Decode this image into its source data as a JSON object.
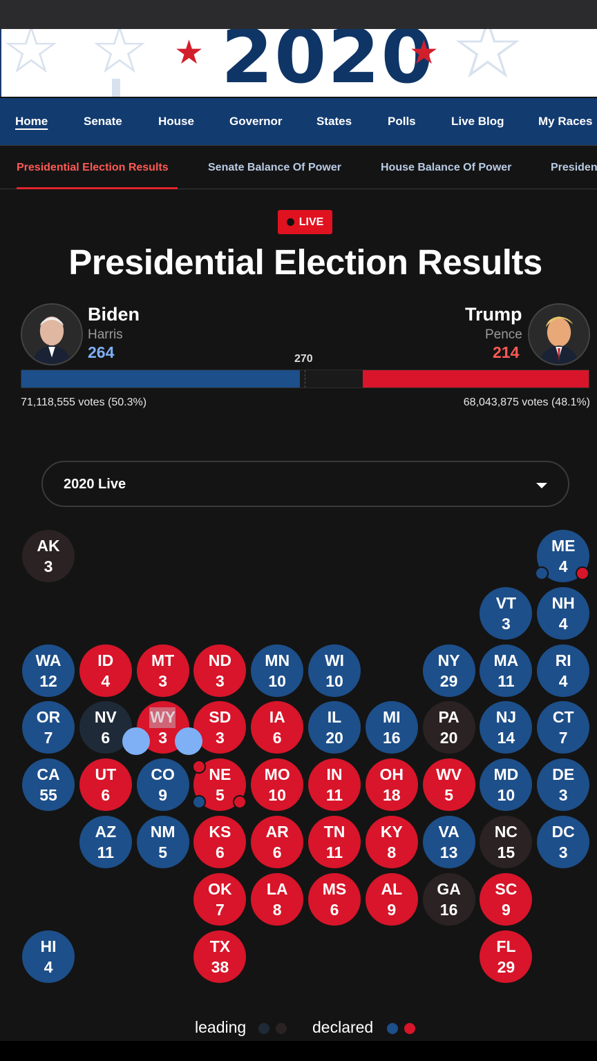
{
  "banner": {
    "year": "2020"
  },
  "nav": {
    "items": [
      "Home",
      "Senate",
      "House",
      "Governor",
      "States",
      "Polls",
      "Live Blog",
      "My Races"
    ]
  },
  "subnav": {
    "items": [
      "Presidential Election Results",
      "Senate Balance Of Power",
      "House Balance Of Power",
      "Presiden"
    ]
  },
  "live_label": "LIVE",
  "page_title": "Presidential Election Results",
  "candidates": {
    "dem": {
      "name": "Biden",
      "vp": "Harris",
      "electoral": "264",
      "votes": "71,118,555 votes (50.3%)"
    },
    "rep": {
      "name": "Trump",
      "vp": "Pence",
      "electoral": "214",
      "votes": "68,043,875 votes (48.1%)"
    }
  },
  "threshold": "270",
  "electoral_bar": {
    "total": 538,
    "dem": 264,
    "rep": 214,
    "dem_color": "#1d4f8a",
    "rep_color": "#d8152a"
  },
  "selector": {
    "value": "2020 Live"
  },
  "states": [
    {
      "abbr": "AK",
      "ev": "3",
      "status": "tbd"
    },
    {
      "abbr": "ME",
      "ev": "4",
      "status": "blue"
    },
    {
      "abbr": "VT",
      "ev": "3",
      "status": "blue"
    },
    {
      "abbr": "NH",
      "ev": "4",
      "status": "blue"
    },
    {
      "abbr": "WA",
      "ev": "12",
      "status": "blue"
    },
    {
      "abbr": "ID",
      "ev": "4",
      "status": "red"
    },
    {
      "abbr": "MT",
      "ev": "3",
      "status": "red"
    },
    {
      "abbr": "ND",
      "ev": "3",
      "status": "red"
    },
    {
      "abbr": "MN",
      "ev": "10",
      "status": "blue"
    },
    {
      "abbr": "WI",
      "ev": "10",
      "status": "blue"
    },
    {
      "abbr": "NY",
      "ev": "29",
      "status": "blue"
    },
    {
      "abbr": "MA",
      "ev": "11",
      "status": "blue"
    },
    {
      "abbr": "RI",
      "ev": "4",
      "status": "blue"
    },
    {
      "abbr": "OR",
      "ev": "7",
      "status": "blue"
    },
    {
      "abbr": "NV",
      "ev": "6",
      "status": "dark"
    },
    {
      "abbr": "WY",
      "ev": "3",
      "status": "red"
    },
    {
      "abbr": "SD",
      "ev": "3",
      "status": "red"
    },
    {
      "abbr": "IA",
      "ev": "6",
      "status": "red"
    },
    {
      "abbr": "IL",
      "ev": "20",
      "status": "blue"
    },
    {
      "abbr": "MI",
      "ev": "16",
      "status": "blue"
    },
    {
      "abbr": "PA",
      "ev": "20",
      "status": "tbd"
    },
    {
      "abbr": "NJ",
      "ev": "14",
      "status": "blue"
    },
    {
      "abbr": "CT",
      "ev": "7",
      "status": "blue"
    },
    {
      "abbr": "CA",
      "ev": "55",
      "status": "blue"
    },
    {
      "abbr": "UT",
      "ev": "6",
      "status": "red"
    },
    {
      "abbr": "CO",
      "ev": "9",
      "status": "blue"
    },
    {
      "abbr": "NE",
      "ev": "5",
      "status": "red"
    },
    {
      "abbr": "MO",
      "ev": "10",
      "status": "red"
    },
    {
      "abbr": "IN",
      "ev": "11",
      "status": "red"
    },
    {
      "abbr": "OH",
      "ev": "18",
      "status": "red"
    },
    {
      "abbr": "WV",
      "ev": "5",
      "status": "red"
    },
    {
      "abbr": "MD",
      "ev": "10",
      "status": "blue"
    },
    {
      "abbr": "DE",
      "ev": "3",
      "status": "blue"
    },
    {
      "abbr": "AZ",
      "ev": "11",
      "status": "blue"
    },
    {
      "abbr": "NM",
      "ev": "5",
      "status": "blue"
    },
    {
      "abbr": "KS",
      "ev": "6",
      "status": "red"
    },
    {
      "abbr": "AR",
      "ev": "6",
      "status": "red"
    },
    {
      "abbr": "TN",
      "ev": "11",
      "status": "red"
    },
    {
      "abbr": "KY",
      "ev": "8",
      "status": "red"
    },
    {
      "abbr": "VA",
      "ev": "13",
      "status": "blue"
    },
    {
      "abbr": "NC",
      "ev": "15",
      "status": "tbd"
    },
    {
      "abbr": "DC",
      "ev": "3",
      "status": "blue"
    },
    {
      "abbr": "OK",
      "ev": "7",
      "status": "red"
    },
    {
      "abbr": "LA",
      "ev": "8",
      "status": "red"
    },
    {
      "abbr": "MS",
      "ev": "6",
      "status": "red"
    },
    {
      "abbr": "AL",
      "ev": "9",
      "status": "red"
    },
    {
      "abbr": "GA",
      "ev": "16",
      "status": "tbd"
    },
    {
      "abbr": "SC",
      "ev": "9",
      "status": "red"
    },
    {
      "abbr": "HI",
      "ev": "4",
      "status": "blue"
    },
    {
      "abbr": "TX",
      "ev": "38",
      "status": "red"
    },
    {
      "abbr": "FL",
      "ev": "29",
      "status": "red"
    }
  ],
  "legend": {
    "leading": "leading",
    "declared": "declared"
  },
  "colors": {
    "dem": "#1d4f8a",
    "rep": "#d8152a",
    "live_red": "#e0121f",
    "nav_blue": "#123b70"
  }
}
